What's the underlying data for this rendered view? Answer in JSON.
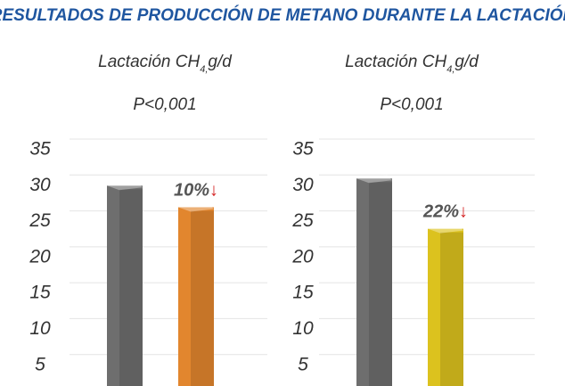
{
  "chart_data": [
    {
      "type": "bar",
      "title": "RESULTADOS DE PRODUCCIÓN DE METANO DURANTE LA LACTACIÓN",
      "subtitle_parts": [
        "Lactación CH",
        "4,",
        "g/d"
      ],
      "p_value": "P<0,001",
      "values": [
        30,
        27
      ],
      "colors": [
        "#6e6e6e",
        "#e2862e"
      ],
      "annotation": "10%",
      "annotation_arrow": "↓",
      "ylim": [
        0,
        35
      ],
      "yticks": [
        5,
        10,
        15,
        20,
        25,
        30,
        35
      ],
      "grid": true
    },
    {
      "type": "bar",
      "subtitle_parts": [
        "Lactación CH",
        "4,",
        "g/d"
      ],
      "p_value": "P<0,001",
      "values": [
        31,
        24
      ],
      "colors": [
        "#6e6e6e",
        "#dcc21e"
      ],
      "annotation": "22%",
      "annotation_arrow": "↓",
      "ylim": [
        0,
        35
      ],
      "yticks": [
        5,
        10,
        15,
        20,
        25,
        30,
        35
      ],
      "grid": true
    }
  ]
}
